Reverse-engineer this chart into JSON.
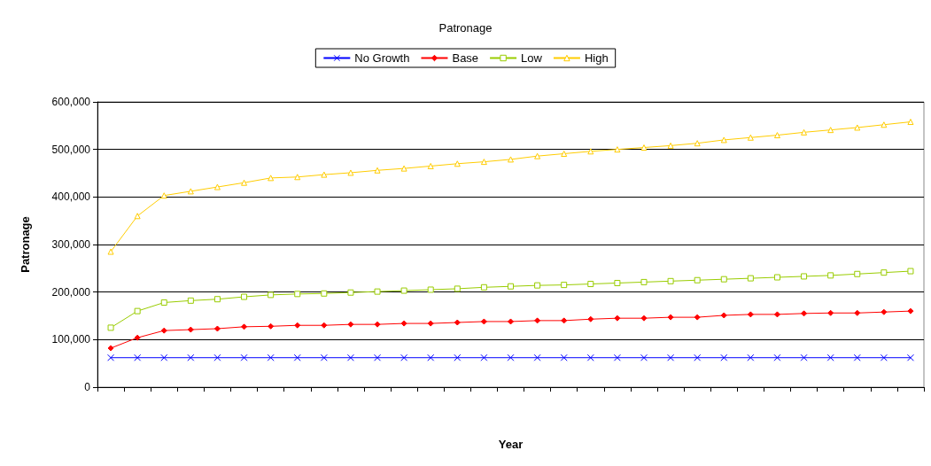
{
  "chart_data": {
    "type": "line",
    "title": "Patronage",
    "xlabel": "Year",
    "ylabel": "Patronage",
    "categories": [
      null,
      null,
      null,
      null,
      null,
      null,
      null,
      null,
      null,
      null,
      null,
      null,
      null,
      null,
      null,
      null,
      null,
      null,
      null,
      null,
      null,
      null,
      null,
      null,
      null,
      null,
      null,
      null,
      null,
      null,
      null
    ],
    "ylim": [
      0,
      600000
    ],
    "yticks": [
      0,
      {
        "value": 100000,
        "label": "100,000"
      },
      {
        "value": 200000,
        "label": "200,000"
      },
      {
        "value": 300000,
        "label": "300,000"
      },
      {
        "value": 400000,
        "label": "400,000"
      },
      {
        "value": 500000,
        "label": "500,000"
      },
      {
        "value": 600000,
        "label": "600,000"
      }
    ],
    "grid": "y",
    "legend": "top",
    "series": [
      {
        "name": "No Growth",
        "color": "#0000ff",
        "marker": "cross",
        "values": [
          62000,
          62000,
          62000,
          62000,
          62000,
          62000,
          62000,
          62000,
          62000,
          62000,
          62000,
          62000,
          62000,
          62000,
          62000,
          62000,
          62000,
          62000,
          62000,
          62000,
          62000,
          62000,
          62000,
          62000,
          62000,
          62000,
          62000,
          62000,
          62000,
          62000,
          62000
        ]
      },
      {
        "name": "Base",
        "color": "#ff0000",
        "marker": "diamond",
        "values": [
          82000,
          104000,
          119000,
          121000,
          123000,
          127000,
          128000,
          130000,
          130000,
          132000,
          132000,
          134000,
          134000,
          136000,
          138000,
          138000,
          140000,
          140000,
          143000,
          145000,
          145000,
          147000,
          147000,
          151000,
          153000,
          153000,
          155000,
          156000,
          156000,
          158000,
          160000
        ]
      },
      {
        "name": "Low",
        "color": "#99cc00",
        "marker": "square",
        "values": [
          125000,
          160000,
          178000,
          182000,
          185000,
          190000,
          194000,
          196000,
          197000,
          199000,
          201000,
          203000,
          205000,
          207000,
          210000,
          212000,
          214000,
          215000,
          217000,
          219000,
          221000,
          223000,
          225000,
          227000,
          229000,
          231000,
          233000,
          235000,
          238000,
          241000,
          244000
        ]
      },
      {
        "name": "High",
        "color": "#ffcc00",
        "marker": "triangle",
        "values": [
          285000,
          360000,
          403000,
          412000,
          421000,
          430000,
          440000,
          442000,
          447000,
          451000,
          456000,
          460000,
          465000,
          470000,
          474000,
          479000,
          486000,
          491000,
          496000,
          500000,
          504000,
          508000,
          513000,
          520000,
          525000,
          530000,
          536000,
          541000,
          546000,
          552000,
          558000
        ]
      }
    ]
  }
}
